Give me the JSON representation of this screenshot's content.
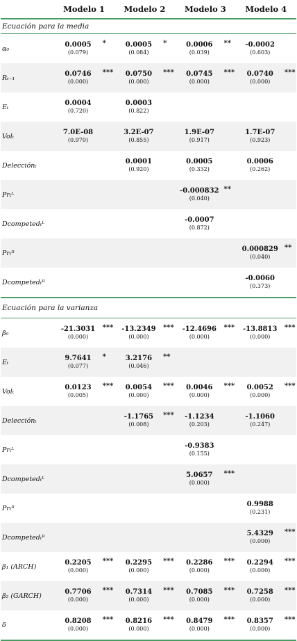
{
  "headers": [
    "",
    "Modelo 1",
    "Modelo 2",
    "Modelo 3",
    "Modelo 4"
  ],
  "sections": [
    {
      "title": "Ecuación para la media",
      "rows": [
        {
          "label": "α₀",
          "cells": [
            {
              "coef": "0.0005",
              "p": "(0.079)",
              "sig": "*"
            },
            {
              "coef": "0.0005",
              "p": "(0.084)",
              "sig": "*"
            },
            {
              "coef": "0.0006",
              "p": "(0.039)",
              "sig": "**"
            },
            {
              "coef": "-0.0002",
              "p": "(0.603)",
              "sig": ""
            }
          ]
        },
        {
          "label": "Rₜ₋₁",
          "cells": [
            {
              "coef": "0.0746",
              "p": "(0.000)",
              "sig": "***"
            },
            {
              "coef": "0.0750",
              "p": "(0.000)",
              "sig": "***"
            },
            {
              "coef": "0.0745",
              "p": "(0.000)",
              "sig": "***"
            },
            {
              "coef": "0.0740",
              "p": "(0.000)",
              "sig": "***"
            }
          ]
        },
        {
          "label": "Eₜ",
          "cells": [
            {
              "coef": "0.0004",
              "p": "(0.720)",
              "sig": ""
            },
            {
              "coef": "0.0003",
              "p": "(0.822)",
              "sig": ""
            },
            {
              "coef": "",
              "p": "",
              "sig": ""
            },
            {
              "coef": "",
              "p": "",
              "sig": ""
            }
          ]
        },
        {
          "label": "Volₜ",
          "cells": [
            {
              "coef": "7.0E-08",
              "p": "(0.970)",
              "sig": ""
            },
            {
              "coef": "3.2E-07",
              "p": "(0.855)",
              "sig": ""
            },
            {
              "coef": "1.9E-07",
              "p": "(0.917)",
              "sig": ""
            },
            {
              "coef": "1.7E-07",
              "p": "(0.923)",
              "sig": ""
            }
          ]
        },
        {
          "label": "Delecciónₜ",
          "cells": [
            {
              "coef": "",
              "p": "",
              "sig": ""
            },
            {
              "coef": "0.0001",
              "p": "(0.920)",
              "sig": ""
            },
            {
              "coef": "0.0005",
              "p": "(0.332)",
              "sig": ""
            },
            {
              "coef": "0.0006",
              "p": "(0.262)",
              "sig": ""
            }
          ]
        },
        {
          "label": "Prₜᴸ",
          "cells": [
            {
              "coef": "",
              "p": "",
              "sig": ""
            },
            {
              "coef": "",
              "p": "",
              "sig": ""
            },
            {
              "coef": "-0.000832",
              "p": "(0.040)",
              "sig": "**"
            },
            {
              "coef": "",
              "p": "",
              "sig": ""
            }
          ]
        },
        {
          "label": "Dcompetedₜᴸ",
          "cells": [
            {
              "coef": "",
              "p": "",
              "sig": ""
            },
            {
              "coef": "",
              "p": "",
              "sig": ""
            },
            {
              "coef": "-0.0007",
              "p": "(0.872)",
              "sig": ""
            },
            {
              "coef": "",
              "p": "",
              "sig": ""
            }
          ]
        },
        {
          "label": "Prₜᴿ",
          "cells": [
            {
              "coef": "",
              "p": "",
              "sig": ""
            },
            {
              "coef": "",
              "p": "",
              "sig": ""
            },
            {
              "coef": "",
              "p": "",
              "sig": ""
            },
            {
              "coef": "0.000829",
              "p": "(0.040)",
              "sig": "**"
            }
          ]
        },
        {
          "label": "Dcompetedₜᴿ",
          "cells": [
            {
              "coef": "",
              "p": "",
              "sig": ""
            },
            {
              "coef": "",
              "p": "",
              "sig": ""
            },
            {
              "coef": "",
              "p": "",
              "sig": ""
            },
            {
              "coef": "-0.0060",
              "p": "(0.373)",
              "sig": ""
            }
          ]
        }
      ]
    },
    {
      "title": "Ecuación para la varianza",
      "rows": [
        {
          "label": "β₀",
          "cells": [
            {
              "coef": "-21.3031",
              "p": "(0.000)",
              "sig": "***"
            },
            {
              "coef": "-13.2349",
              "p": "(0.000)",
              "sig": "***"
            },
            {
              "coef": "-12.4696",
              "p": "(0.000)",
              "sig": "***"
            },
            {
              "coef": "-13.8813",
              "p": "(0.000)",
              "sig": "***"
            }
          ]
        },
        {
          "label": "Eₜ",
          "cells": [
            {
              "coef": "9.7641",
              "p": "(0.077)",
              "sig": "*"
            },
            {
              "coef": "3.2176",
              "p": "(0.046)",
              "sig": "**"
            },
            {
              "coef": "",
              "p": "",
              "sig": ""
            },
            {
              "coef": "",
              "p": "",
              "sig": ""
            }
          ]
        },
        {
          "label": "Volₜ",
          "cells": [
            {
              "coef": "0.0123",
              "p": "(0.005)",
              "sig": "***"
            },
            {
              "coef": "0.0054",
              "p": "(0.000)",
              "sig": "***"
            },
            {
              "coef": "0.0046",
              "p": "(0.000)",
              "sig": "***"
            },
            {
              "coef": "0.0052",
              "p": "(0.000)",
              "sig": "***"
            }
          ]
        },
        {
          "label": "Delecciónₜ",
          "cells": [
            {
              "coef": "",
              "p": "",
              "sig": ""
            },
            {
              "coef": "-1.1765",
              "p": "(0.008)",
              "sig": "***"
            },
            {
              "coef": "-1.1234",
              "p": "(0.203)",
              "sig": ""
            },
            {
              "coef": "-1.1060",
              "p": "(0.247)",
              "sig": ""
            }
          ]
        },
        {
          "label": "Prₜᴸ",
          "cells": [
            {
              "coef": "",
              "p": "",
              "sig": ""
            },
            {
              "coef": "",
              "p": "",
              "sig": ""
            },
            {
              "coef": "-0.9383",
              "p": "(0.155)",
              "sig": ""
            },
            {
              "coef": "",
              "p": "",
              "sig": ""
            }
          ]
        },
        {
          "label": "Dcompetedₜᴸ",
          "cells": [
            {
              "coef": "",
              "p": "",
              "sig": ""
            },
            {
              "coef": "",
              "p": "",
              "sig": ""
            },
            {
              "coef": "5.0657",
              "p": "(0.000)",
              "sig": "***"
            },
            {
              "coef": "",
              "p": "",
              "sig": ""
            }
          ]
        },
        {
          "label": "Prₜᴿ",
          "cells": [
            {
              "coef": "",
              "p": "",
              "sig": ""
            },
            {
              "coef": "",
              "p": "",
              "sig": ""
            },
            {
              "coef": "",
              "p": "",
              "sig": ""
            },
            {
              "coef": "0.9988",
              "p": "(0.231)",
              "sig": ""
            }
          ]
        },
        {
          "label": "Dcompetedₜᴿ",
          "cells": [
            {
              "coef": "",
              "p": "",
              "sig": ""
            },
            {
              "coef": "",
              "p": "",
              "sig": ""
            },
            {
              "coef": "",
              "p": "",
              "sig": ""
            },
            {
              "coef": "5.4329",
              "p": "(0.000)",
              "sig": "***"
            }
          ]
        },
        {
          "label": "β₁ (ARCH)",
          "cells": [
            {
              "coef": "0.2205",
              "p": "(0.000)",
              "sig": "***"
            },
            {
              "coef": "0.2295",
              "p": "(0.000)",
              "sig": "***"
            },
            {
              "coef": "0.2286",
              "p": "(0.000)",
              "sig": "***"
            },
            {
              "coef": "0.2294",
              "p": "(0.000)",
              "sig": "***"
            }
          ]
        },
        {
          "label": "β₂ (GARCH)",
          "cells": [
            {
              "coef": "0.7706",
              "p": "(0.000)",
              "sig": "***"
            },
            {
              "coef": "0.7314",
              "p": "(0.000)",
              "sig": "***"
            },
            {
              "coef": "0.7085",
              "p": "(0.000)",
              "sig": "***"
            },
            {
              "coef": "0.7258",
              "p": "(0.000)",
              "sig": "***"
            }
          ]
        },
        {
          "label": "δ",
          "cells": [
            {
              "coef": "0.8208",
              "p": "(0.000)",
              "sig": "***"
            },
            {
              "coef": "0.8216",
              "p": "(0.000)",
              "sig": "***"
            },
            {
              "coef": "0.8479",
              "p": "(0.000)",
              "sig": "***"
            },
            {
              "coef": "0.8357",
              "p": "(0.000)",
              "sig": "***"
            }
          ]
        }
      ]
    }
  ]
}
